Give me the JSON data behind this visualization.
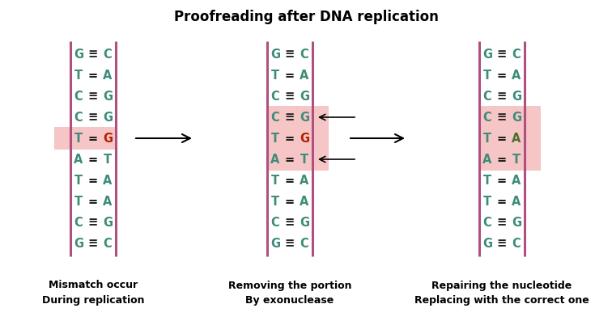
{
  "title": "Proofreading after DNA replication",
  "title_fontsize": 12,
  "background_color": "#ffffff",
  "strand_color": "#b05080",
  "base_color": "#3d8b7a",
  "mismatch_right_color": "#b32000",
  "corrected_right_color": "#4a7030",
  "highlight_color": "#f0a0a0",
  "sequences_p1": [
    {
      "left": "G",
      "bond": "≡",
      "right": "C"
    },
    {
      "left": "T",
      "bond": "=",
      "right": "A"
    },
    {
      "left": "C",
      "bond": "≡",
      "right": "G"
    },
    {
      "left": "C",
      "bond": "≡",
      "right": "G"
    },
    {
      "left": "T",
      "bond": "=",
      "right": "G"
    },
    {
      "left": "A",
      "bond": "=",
      "right": "T"
    },
    {
      "left": "T",
      "bond": "=",
      "right": "A"
    },
    {
      "left": "T",
      "bond": "=",
      "right": "A"
    },
    {
      "left": "C",
      "bond": "≡",
      "right": "G"
    },
    {
      "left": "G",
      "bond": "≡",
      "right": "C"
    }
  ],
  "sequences_p2": [
    {
      "left": "G",
      "bond": "≡",
      "right": "C"
    },
    {
      "left": "T",
      "bond": "=",
      "right": "A"
    },
    {
      "left": "C",
      "bond": "≡",
      "right": "G"
    },
    {
      "left": "C",
      "bond": "≡",
      "right": "G"
    },
    {
      "left": "T",
      "bond": "=",
      "right": "G"
    },
    {
      "left": "A",
      "bond": "=",
      "right": "T"
    },
    {
      "left": "T",
      "bond": "=",
      "right": "A"
    },
    {
      "left": "T",
      "bond": "=",
      "right": "A"
    },
    {
      "left": "C",
      "bond": "≡",
      "right": "G"
    },
    {
      "left": "G",
      "bond": "≡",
      "right": "C"
    }
  ],
  "sequences_p3": [
    {
      "left": "G",
      "bond": "≡",
      "right": "C"
    },
    {
      "left": "T",
      "bond": "=",
      "right": "A"
    },
    {
      "left": "C",
      "bond": "≡",
      "right": "G"
    },
    {
      "left": "C",
      "bond": "≡",
      "right": "G"
    },
    {
      "left": "T",
      "bond": "=",
      "right": "A"
    },
    {
      "left": "A",
      "bond": "=",
      "right": "T"
    },
    {
      "left": "T",
      "bond": "=",
      "right": "A"
    },
    {
      "left": "T",
      "bond": "=",
      "right": "A"
    },
    {
      "left": "C",
      "bond": "≡",
      "right": "G"
    },
    {
      "left": "G",
      "bond": "≡",
      "right": "C"
    }
  ],
  "mismatch_row_p1": 4,
  "mismatch_row_p2": 4,
  "highlight_rows_p1": [
    4
  ],
  "highlight_rows_p2": [
    3,
    4,
    5
  ],
  "highlight_rows_p3": [
    3,
    4,
    5
  ],
  "corrected_row_p3": 4,
  "label1": "Mismatch occur\nDuring replication",
  "label2": "Removing the portion\nBy exonuclease",
  "label3": "Repairing the nucleotide\nReplacing with the correct one",
  "label_fontsize": 9,
  "base_fontsize": 10.5
}
